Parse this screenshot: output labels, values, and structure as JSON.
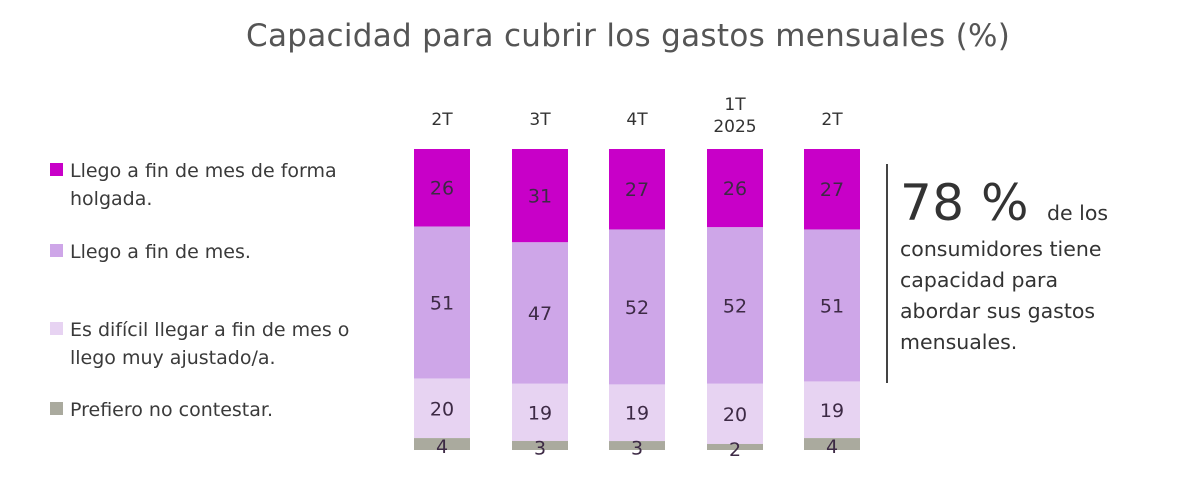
{
  "chart_data": {
    "type": "bar",
    "stacked": true,
    "orientation": "vertical",
    "title": "Capacidad para cubrir los gastos mensuales (%)",
    "categories": [
      "2T",
      "3T",
      "4T",
      "1T\n2025",
      "2T"
    ],
    "category_lines": [
      [
        "2T"
      ],
      [
        "3T"
      ],
      [
        "4T"
      ],
      [
        "1T",
        "2025"
      ],
      [
        "2T"
      ]
    ],
    "series": [
      {
        "name": "Llego a fin de mes de forma holgada.",
        "color": "#C800C8",
        "values": [
          26,
          31,
          27,
          26,
          27
        ]
      },
      {
        "name": "Llego a fin de mes.",
        "color": "#CEA6E8",
        "values": [
          51,
          47,
          52,
          52,
          51
        ]
      },
      {
        "name": "Es difícil llegar a fin de mes o llego muy ajustado/a.",
        "color": "#E7D3F2",
        "values": [
          20,
          19,
          19,
          20,
          19
        ]
      },
      {
        "name": "Prefiero no contestar.",
        "color": "#AAAA9E",
        "values": [
          4,
          3,
          3,
          2,
          4
        ]
      }
    ],
    "stack_order": "top-to-bottom",
    "ylim": [
      0,
      100
    ],
    "xlabel": "",
    "ylabel": "",
    "grid": false,
    "legend_position": "left",
    "data_labels": true
  },
  "legend": {
    "items": [
      {
        "label": "Llego a fin de mes de forma holgada.",
        "color": "#C800C8"
      },
      {
        "label": "Llego a fin de mes.",
        "color": "#CEA6E8"
      },
      {
        "label": "Es difícil llegar a fin de mes o llego muy ajustado/a.",
        "color": "#E7D3F2"
      },
      {
        "label": "Prefiero no contestar.",
        "color": "#AAAA9E"
      }
    ]
  },
  "callout": {
    "value": "78 %",
    "lead": "de los",
    "lines": [
      "consumidores tiene",
      "capacidad para",
      "abordar sus gastos",
      "mensuales."
    ]
  },
  "colors": {
    "text": "#3a3a3a",
    "title": "#555555",
    "bar_label": "#3d2a45",
    "divider": "#444444"
  }
}
